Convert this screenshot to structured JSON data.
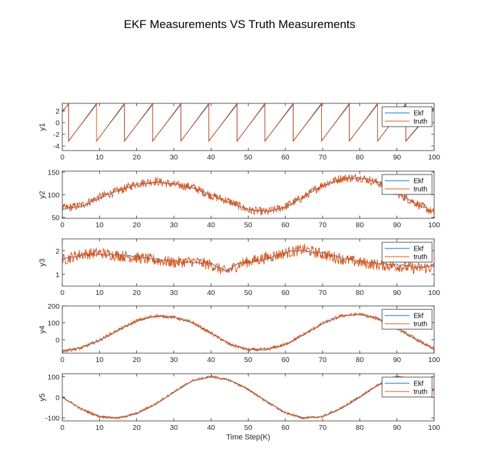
{
  "figure": {
    "title": "EKF Measurements VS Truth Measurements"
  },
  "colors": {
    "ekf": "#0072BD",
    "truth": "#D95319",
    "axis": "#262626",
    "background": "#ffffff"
  },
  "chart_data": [
    {
      "type": "line",
      "ylabel": "y1",
      "xlabel": "",
      "xlim": [
        0,
        100
      ],
      "ylim": [
        -4.8,
        3.3
      ],
      "xticks": [
        0,
        10,
        20,
        30,
        40,
        50,
        60,
        70,
        80,
        90,
        100
      ],
      "yticks": [
        -4,
        -2,
        0,
        2
      ],
      "grid": false,
      "legend_position": "top-right",
      "series": [
        {
          "name": "Ekf",
          "x": [
            0,
            1.7,
            1.7,
            9.2,
            9.2,
            16.7,
            16.7,
            24.3,
            24.3,
            31.9,
            31.9,
            39.4,
            39.4,
            47.0,
            47.0,
            54.5,
            54.5,
            62.1,
            62.1,
            69.7,
            69.7,
            77.2,
            77.2,
            84.8,
            84.8,
            92.4,
            92.4,
            100
          ],
          "y": [
            2.0,
            3.14,
            -3.14,
            3.14,
            -3.14,
            3.14,
            -3.14,
            3.14,
            -3.14,
            3.14,
            -3.14,
            3.14,
            -3.14,
            3.14,
            -3.14,
            3.14,
            -3.14,
            3.14,
            -3.14,
            3.14,
            -3.14,
            3.14,
            -3.14,
            3.14,
            -3.14,
            3.14,
            -3.14,
            2.6
          ]
        },
        {
          "name": "truth",
          "x": [
            0,
            1.7,
            1.7,
            9.2,
            9.2,
            16.7,
            16.7,
            24.3,
            24.3,
            31.9,
            31.9,
            39.4,
            39.4,
            47.0,
            47.0,
            54.5,
            54.5,
            62.1,
            62.1,
            69.7,
            69.7,
            77.2,
            77.2,
            84.8,
            84.8,
            92.4,
            92.4,
            100
          ],
          "y": [
            1.8,
            3.3,
            -3.2,
            3.3,
            -3.2,
            3.3,
            -3.2,
            3.3,
            -3.2,
            3.3,
            -3.2,
            3.3,
            -3.2,
            3.3,
            -3.2,
            3.3,
            -3.2,
            3.3,
            -3.2,
            3.3,
            -3.2,
            3.3,
            -3.2,
            3.3,
            -3.2,
            3.3,
            -3.2,
            2.4
          ]
        }
      ]
    },
    {
      "type": "line",
      "ylabel": "y2",
      "xlabel": "",
      "xlim": [
        0,
        100
      ],
      "ylim": [
        48,
        152
      ],
      "xticks": [
        0,
        10,
        20,
        30,
        40,
        50,
        60,
        70,
        80,
        90,
        100
      ],
      "yticks": [
        50,
        100,
        150
      ],
      "grid": false,
      "legend_position": "top-right",
      "series": [
        {
          "name": "Ekf",
          "x": [
            0,
            5,
            10,
            15,
            20,
            25,
            30,
            35,
            40,
            45,
            50,
            55,
            60,
            65,
            70,
            75,
            80,
            85,
            90,
            95,
            100
          ],
          "y": [
            68,
            74,
            92,
            110,
            122,
            128,
            125,
            115,
            100,
            82,
            68,
            63,
            72,
            96,
            120,
            134,
            137,
            128,
            105,
            80,
            63
          ]
        },
        {
          "name": "truth",
          "x": [
            0,
            5,
            10,
            15,
            20,
            25,
            30,
            35,
            40,
            45,
            50,
            55,
            60,
            65,
            70,
            75,
            80,
            85,
            90,
            95,
            100
          ],
          "y": [
            70,
            76,
            95,
            108,
            124,
            130,
            122,
            117,
            98,
            85,
            66,
            62,
            74,
            95,
            122,
            136,
            138,
            126,
            103,
            82,
            60
          ]
        }
      ]
    },
    {
      "type": "line",
      "ylabel": "y3",
      "xlabel": "",
      "xlim": [
        0,
        100
      ],
      "ylim": [
        0.5,
        2.5
      ],
      "xticks": [
        0,
        10,
        20,
        30,
        40,
        50,
        60,
        70,
        80,
        90,
        100
      ],
      "yticks": [
        1,
        2
      ],
      "grid": false,
      "legend_position": "top-right",
      "series": [
        {
          "name": "Ekf",
          "x": [
            0,
            5,
            10,
            15,
            20,
            25,
            30,
            35,
            40,
            44,
            48,
            52,
            56,
            60,
            65,
            70,
            75,
            80,
            85,
            90,
            95,
            100
          ],
          "y": [
            1.65,
            1.8,
            1.85,
            1.82,
            1.75,
            1.65,
            1.55,
            1.5,
            1.45,
            1.15,
            1.5,
            1.55,
            1.7,
            1.95,
            2.0,
            1.9,
            1.7,
            1.55,
            1.45,
            1.4,
            1.3,
            1.35
          ]
        },
        {
          "name": "truth",
          "x": [
            0,
            5,
            10,
            15,
            20,
            25,
            30,
            35,
            40,
            44,
            48,
            52,
            56,
            60,
            65,
            70,
            75,
            80,
            85,
            90,
            95,
            100
          ],
          "y": [
            1.6,
            1.85,
            1.9,
            1.8,
            1.7,
            1.6,
            1.5,
            1.55,
            1.4,
            1.1,
            1.45,
            1.6,
            1.75,
            1.9,
            2.05,
            1.85,
            1.65,
            1.5,
            1.4,
            1.35,
            1.25,
            1.3
          ]
        }
      ]
    },
    {
      "type": "line",
      "ylabel": "y4",
      "xlabel": "",
      "xlim": [
        0,
        100
      ],
      "ylim": [
        -80,
        200
      ],
      "xticks": [
        0,
        10,
        20,
        30,
        40,
        50,
        60,
        70,
        80,
        90,
        100
      ],
      "yticks": [
        0,
        100,
        200
      ],
      "grid": false,
      "legend_position": "top-right",
      "series": [
        {
          "name": "Ekf",
          "x": [
            0,
            5,
            10,
            15,
            20,
            25,
            30,
            35,
            40,
            45,
            50,
            55,
            60,
            65,
            70,
            75,
            80,
            85,
            90,
            95,
            100
          ],
          "y": [
            -65,
            -48,
            -5,
            55,
            110,
            140,
            135,
            100,
            40,
            -25,
            -58,
            -60,
            -30,
            30,
            95,
            140,
            150,
            125,
            70,
            0,
            -55
          ]
        },
        {
          "name": "truth",
          "x": [
            0,
            5,
            10,
            15,
            20,
            25,
            30,
            35,
            40,
            45,
            50,
            55,
            60,
            65,
            70,
            75,
            80,
            85,
            90,
            95,
            100
          ],
          "y": [
            -68,
            -50,
            -3,
            57,
            112,
            142,
            133,
            102,
            38,
            -28,
            -60,
            -58,
            -28,
            32,
            97,
            142,
            152,
            123,
            68,
            5,
            -58
          ]
        }
      ]
    },
    {
      "type": "line",
      "ylabel": "y5",
      "xlabel": "Time Step(K)",
      "xlim": [
        0,
        100
      ],
      "ylim": [
        -115,
        115
      ],
      "xticks": [
        0,
        10,
        20,
        30,
        40,
        50,
        60,
        70,
        80,
        90,
        100
      ],
      "yticks": [
        -100,
        0,
        100
      ],
      "grid": false,
      "legend_position": "top-right",
      "series": [
        {
          "name": "Ekf",
          "x": [
            0,
            5,
            10,
            15,
            20,
            25,
            30,
            35,
            40,
            45,
            50,
            55,
            60,
            65,
            70,
            75,
            80,
            85,
            90,
            95,
            100
          ],
          "y": [
            0,
            -55,
            -92,
            -100,
            -80,
            -35,
            25,
            80,
            100,
            85,
            40,
            -20,
            -75,
            -100,
            -95,
            -55,
            0,
            60,
            100,
            85,
            35
          ]
        },
        {
          "name": "truth",
          "x": [
            0,
            5,
            10,
            15,
            20,
            25,
            30,
            35,
            40,
            45,
            50,
            55,
            60,
            65,
            70,
            75,
            80,
            85,
            90,
            95,
            100
          ],
          "y": [
            2,
            -57,
            -94,
            -102,
            -78,
            -33,
            27,
            82,
            102,
            83,
            38,
            -22,
            -77,
            -102,
            -93,
            -53,
            3,
            62,
            102,
            83,
            33
          ]
        }
      ]
    }
  ]
}
